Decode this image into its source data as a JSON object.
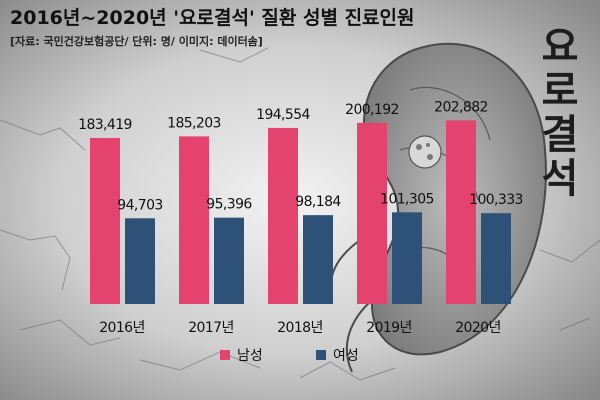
{
  "chart_data": {
    "type": "bar",
    "title": "2016년~2020년 '요로결석' 질환 성별 진료인원",
    "subtitle": "[자료: 국민건강보험공단/ 단위: 명/ 이미지: 데이터솜]",
    "categories": [
      "2016년",
      "2017년",
      "2018년",
      "2019년",
      "2020년"
    ],
    "series": [
      {
        "name": "남성",
        "color": "#e5436f",
        "values": [
          183419,
          185203,
          194554,
          200192,
          202882
        ],
        "labels": [
          "183,419",
          "185,203",
          "194,554",
          "200,192",
          "202,882"
        ]
      },
      {
        "name": "여성",
        "color": "#2e5277",
        "values": [
          94703,
          95396,
          98184,
          101305,
          100333
        ],
        "labels": [
          "94,703",
          "95,396",
          "98,184",
          "101,305",
          "100,333"
        ]
      }
    ],
    "ylim": [
      0,
      212000
    ],
    "xlabel": "",
    "ylabel": "",
    "grid": false,
    "legend_position": "bottom-center",
    "vertical_title": "요로결석"
  }
}
